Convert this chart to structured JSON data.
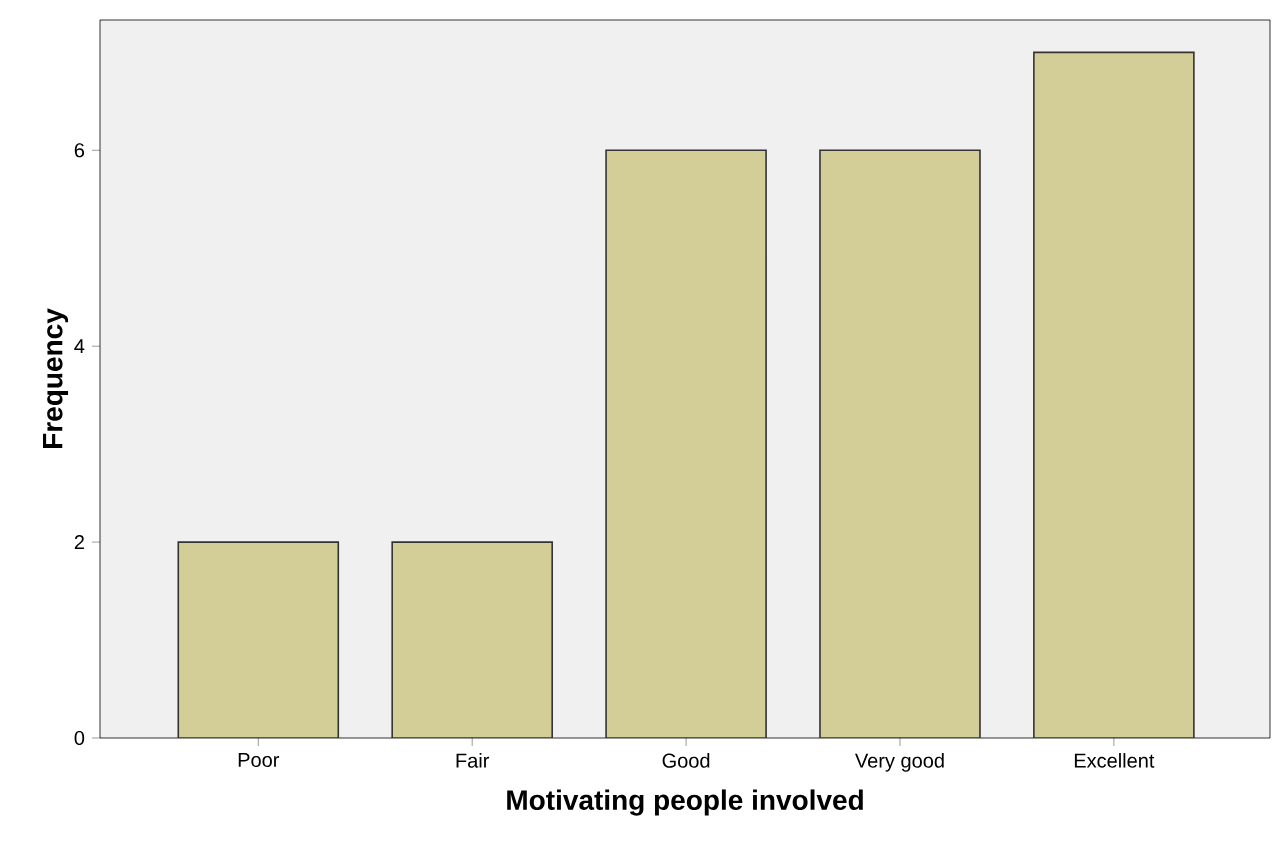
{
  "chart_data": {
    "type": "bar",
    "xlabel": "Motivating people involved",
    "ylabel": "Frequency",
    "categories": [
      "Poor",
      "Fair",
      "Good",
      "Very good",
      "Excellent"
    ],
    "values": [
      2,
      2,
      6,
      6,
      7
    ],
    "color": "#d3ce97",
    "ylim": [
      0,
      7.33
    ],
    "yticks": [
      0,
      2,
      4,
      6
    ],
    "grid": false
  }
}
